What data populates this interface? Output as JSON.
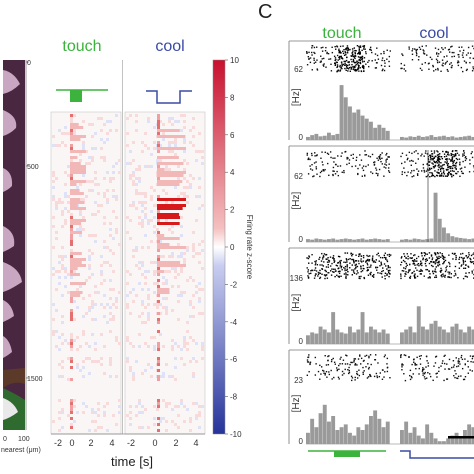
{
  "figure": {
    "panel_label": "C",
    "left": {
      "depth_ticks": [
        "0",
        "500",
        "1500"
      ],
      "depth_xaxis": {
        "ticks": [
          "0",
          "100"
        ],
        "label": "nearest (μm)"
      },
      "heatmap_titles": [
        "touch",
        "cool"
      ],
      "time_ticks": [
        "-2",
        "0",
        "2",
        "4",
        "-2",
        "0",
        "2",
        "4"
      ],
      "time_label": "time [s]",
      "colorbar": {
        "ticks": [
          "10",
          "8",
          "6",
          "4",
          "2",
          "0",
          "-2",
          "-4",
          "-6",
          "-8",
          "-10"
        ],
        "label": "Firing rate z-score"
      }
    },
    "right": {
      "titles": [
        "touch",
        "cool"
      ],
      "units": [
        "[Hz]",
        "[Hz]",
        "[Hz]",
        "[Hz]"
      ],
      "ymax": [
        "62",
        "62",
        "136",
        "23"
      ],
      "zero": [
        "0",
        "0",
        "0",
        "0"
      ]
    },
    "colors": {
      "touch": "#3cb33c",
      "cool": "#3a4ba3",
      "positive": "#d7191c",
      "negative": "#2b3a9e",
      "depth_bg": "#4a2740",
      "psth_fill": "#9a9a9a"
    }
  }
}
